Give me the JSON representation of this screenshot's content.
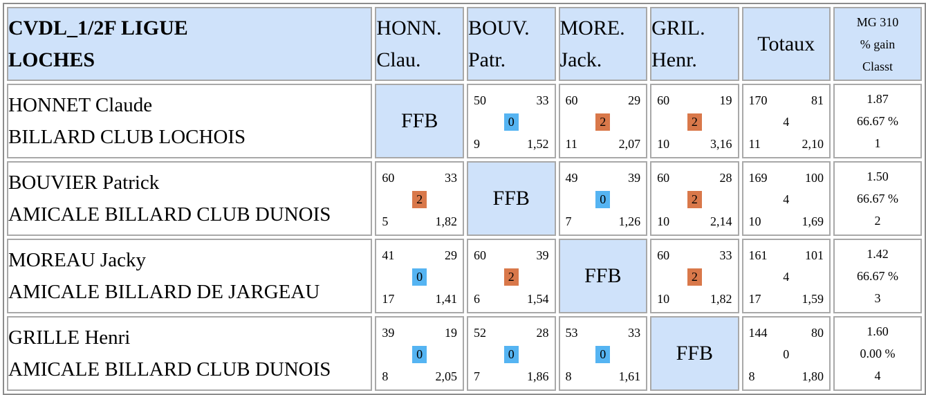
{
  "title": {
    "line1": "CVDL_1/2F LIGUE",
    "line2": "LOCHES"
  },
  "columns": [
    {
      "line1": "HONN.",
      "line2": "Clau."
    },
    {
      "line1": "BOUV.",
      "line2": "Patr."
    },
    {
      "line1": "MORE.",
      "line2": "Jack."
    },
    {
      "line1": "GRIL.",
      "line2": "Henr."
    }
  ],
  "totals_label": "Totaux",
  "mg_header": {
    "line1": "MG 310",
    "line2": "% gain",
    "line3": "Classt"
  },
  "ffb_label": "FFB",
  "colors": {
    "header_bg": "#cfe2fa",
    "win": "#d9784a",
    "loss": "#55b4f2"
  },
  "players": [
    {
      "name": "HONNET Claude",
      "club": "BILLARD CLUB LOCHOIS",
      "cells": [
        null,
        {
          "pts": "50",
          "opp": "33",
          "res": "0",
          "inn": "9",
          "avg": "1,52"
        },
        {
          "pts": "60",
          "opp": "29",
          "res": "2",
          "inn": "11",
          "avg": "2,07"
        },
        {
          "pts": "60",
          "opp": "19",
          "res": "2",
          "inn": "10",
          "avg": "3,16"
        }
      ],
      "totals": {
        "pts": "170",
        "opp": "81",
        "res": "4",
        "inn": "11",
        "avg": "2,10"
      },
      "mg": "1.87",
      "pct": "66.67 %",
      "rank": "1"
    },
    {
      "name": "BOUVIER Patrick",
      "club": "AMICALE BILLARD CLUB DUNOIS",
      "cells": [
        {
          "pts": "60",
          "opp": "33",
          "res": "2",
          "inn": "5",
          "avg": "1,82"
        },
        null,
        {
          "pts": "49",
          "opp": "39",
          "res": "0",
          "inn": "7",
          "avg": "1,26"
        },
        {
          "pts": "60",
          "opp": "28",
          "res": "2",
          "inn": "10",
          "avg": "2,14"
        }
      ],
      "totals": {
        "pts": "169",
        "opp": "100",
        "res": "4",
        "inn": "10",
        "avg": "1,69"
      },
      "mg": "1.50",
      "pct": "66.67 %",
      "rank": "2"
    },
    {
      "name": "MOREAU Jacky",
      "club": "AMICALE BILLARD DE JARGEAU",
      "cells": [
        {
          "pts": "41",
          "opp": "29",
          "res": "0",
          "inn": "17",
          "avg": "1,41"
        },
        {
          "pts": "60",
          "opp": "39",
          "res": "2",
          "inn": "6",
          "avg": "1,54"
        },
        null,
        {
          "pts": "60",
          "opp": "33",
          "res": "2",
          "inn": "10",
          "avg": "1,82"
        }
      ],
      "totals": {
        "pts": "161",
        "opp": "101",
        "res": "4",
        "inn": "17",
        "avg": "1,59"
      },
      "mg": "1.42",
      "pct": "66.67 %",
      "rank": "3"
    },
    {
      "name": "GRILLE Henri",
      "club": "AMICALE BILLARD CLUB DUNOIS",
      "cells": [
        {
          "pts": "39",
          "opp": "19",
          "res": "0",
          "inn": "8",
          "avg": "2,05"
        },
        {
          "pts": "52",
          "opp": "28",
          "res": "0",
          "inn": "7",
          "avg": "1,86"
        },
        {
          "pts": "53",
          "opp": "33",
          "res": "0",
          "inn": "8",
          "avg": "1,61"
        },
        null
      ],
      "totals": {
        "pts": "144",
        "opp": "80",
        "res": "0",
        "inn": "8",
        "avg": "1,80"
      },
      "mg": "1.60",
      "pct": "0.00 %",
      "rank": "4"
    }
  ]
}
